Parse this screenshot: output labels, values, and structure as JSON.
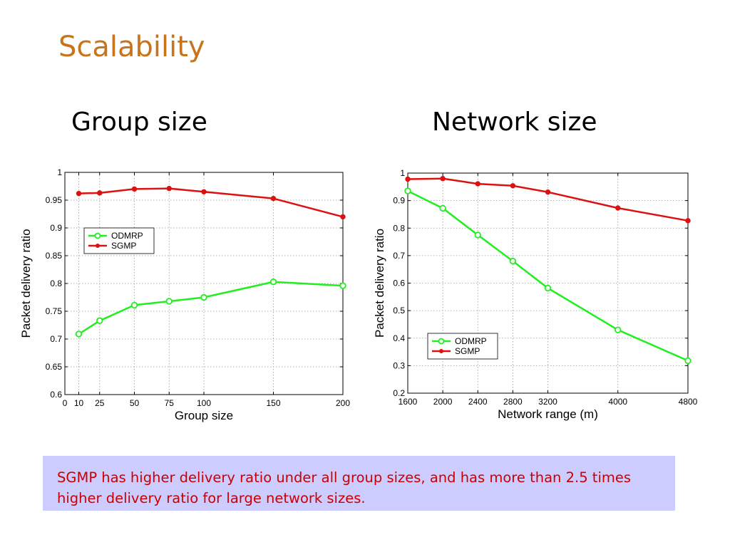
{
  "slide": {
    "title": "Scalability",
    "subtitle_left": "Group size",
    "subtitle_right": "Network size",
    "note": "SGMP has higher delivery ratio under all group sizes, and has more than 2.5 times higher delivery ratio for large network sizes."
  },
  "colors": {
    "title": "#c8741a",
    "odmrp": "#22ee22",
    "sgmp": "#dd1111",
    "note_bg": "#ccccff",
    "note_text": "#cc0000"
  },
  "chart_data": [
    {
      "type": "line",
      "xlabel": "Group size",
      "ylabel": "Packet delivery ratio",
      "xlim": [
        0,
        200
      ],
      "ylim": [
        0.6,
        1.0
      ],
      "xticks": [
        0,
        10,
        25,
        50,
        75,
        100,
        150,
        200
      ],
      "yticks": [
        0.6,
        0.65,
        0.7,
        0.75,
        0.8,
        0.85,
        0.9,
        0.95,
        1.0
      ],
      "ytick_labels": [
        "0.6",
        "0.65",
        "0.7",
        "0.75",
        "0.8",
        "0.85",
        "0.9",
        "0.95",
        "1"
      ],
      "grid": true,
      "legend_position": "upper-left",
      "x": [
        10,
        25,
        50,
        75,
        100,
        150,
        200
      ],
      "series": [
        {
          "name": "ODMRP",
          "values": [
            0.709,
            0.733,
            0.761,
            0.768,
            0.775,
            0.803,
            0.796
          ],
          "color": "#22ee22",
          "marker": "circle-open"
        },
        {
          "name": "SGMP",
          "values": [
            0.962,
            0.963,
            0.97,
            0.971,
            0.965,
            0.953,
            0.92
          ],
          "color": "#dd1111",
          "marker": "dot"
        }
      ]
    },
    {
      "type": "line",
      "xlabel": "Network range (m)",
      "ylabel": "Packet delivery ratio",
      "xlim": [
        1600,
        4800
      ],
      "ylim": [
        0.2,
        1.0
      ],
      "xticks": [
        1600,
        2000,
        2400,
        2800,
        3200,
        4000,
        4800
      ],
      "yticks": [
        0.2,
        0.3,
        0.4,
        0.5,
        0.6,
        0.7,
        0.8,
        0.9,
        1.0
      ],
      "ytick_labels": [
        "0.2",
        "0.3",
        "0.4",
        "0.5",
        "0.6",
        "0.7",
        "0.8",
        "0.9",
        "1"
      ],
      "grid": true,
      "legend_position": "lower-left",
      "x": [
        1600,
        2000,
        2400,
        2800,
        3200,
        4000,
        4800
      ],
      "series": [
        {
          "name": "ODMRP",
          "values": [
            0.935,
            0.872,
            0.775,
            0.68,
            0.582,
            0.43,
            0.318
          ],
          "color": "#22ee22",
          "marker": "circle-open"
        },
        {
          "name": "SGMP",
          "values": [
            0.978,
            0.98,
            0.961,
            0.954,
            0.931,
            0.873,
            0.827
          ],
          "color": "#dd1111",
          "marker": "dot"
        }
      ]
    }
  ]
}
